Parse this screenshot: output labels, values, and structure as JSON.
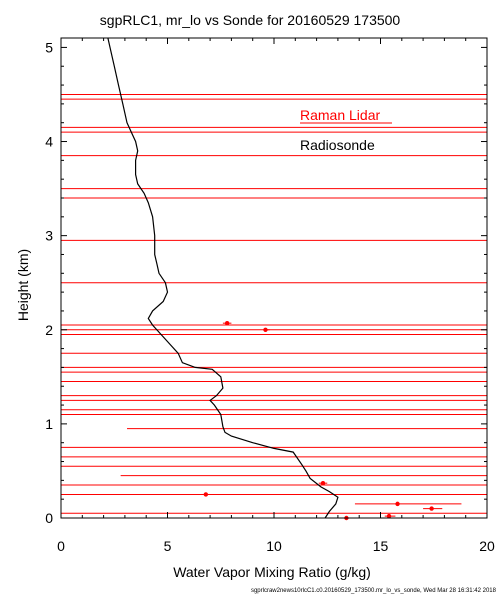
{
  "chart_data": {
    "type": "scatter",
    "title": "sgpRLC1, mr_lo vs Sonde for 20160529 173500",
    "xlabel": "Water Vapor Mixing Ratio (g/kg)",
    "ylabel": "Height (km)",
    "xlim": [
      0,
      20
    ],
    "ylim": [
      0,
      5.1
    ],
    "xticks": [
      "0",
      "5",
      "10",
      "15",
      "20"
    ],
    "yticks": [
      "0",
      "1",
      "2",
      "3",
      "4",
      "5"
    ],
    "grid": false,
    "legend": [
      {
        "name": "Raman Lidar",
        "color": "#ff0000"
      },
      {
        "name": "Radiosonde",
        "color": "#000000"
      }
    ],
    "footer": "sgprlcraw2news10rlcC1.c0.20160529_173500.mr_lo_vs_sonde, Wed Mar 28 16:31:42 2018",
    "series": [
      {
        "name": "Radiosonde",
        "kind": "line",
        "color": "#000000",
        "points": [
          [
            12.4,
            0.0
          ],
          [
            12.6,
            0.07
          ],
          [
            12.9,
            0.15
          ],
          [
            13.0,
            0.22
          ],
          [
            12.6,
            0.28
          ],
          [
            12.2,
            0.33
          ],
          [
            11.7,
            0.42
          ],
          [
            11.5,
            0.5
          ],
          [
            11.3,
            0.57
          ],
          [
            10.9,
            0.7
          ],
          [
            10.0,
            0.74
          ],
          [
            9.0,
            0.8
          ],
          [
            8.0,
            0.87
          ],
          [
            7.7,
            0.91
          ],
          [
            7.6,
            0.97
          ],
          [
            7.5,
            1.1
          ],
          [
            7.2,
            1.2
          ],
          [
            7.0,
            1.25
          ],
          [
            7.3,
            1.3
          ],
          [
            7.6,
            1.38
          ],
          [
            7.5,
            1.5
          ],
          [
            7.1,
            1.58
          ],
          [
            6.3,
            1.6
          ],
          [
            5.7,
            1.65
          ],
          [
            5.5,
            1.75
          ],
          [
            5.1,
            1.85
          ],
          [
            4.7,
            1.95
          ],
          [
            4.3,
            2.05
          ],
          [
            4.1,
            2.12
          ],
          [
            4.3,
            2.2
          ],
          [
            4.8,
            2.3
          ],
          [
            5.0,
            2.4
          ],
          [
            4.9,
            2.5
          ],
          [
            4.6,
            2.6
          ],
          [
            4.5,
            2.7
          ],
          [
            4.4,
            2.8
          ],
          [
            4.4,
            3.0
          ],
          [
            4.3,
            3.2
          ],
          [
            4.1,
            3.35
          ],
          [
            3.9,
            3.45
          ],
          [
            3.6,
            3.55
          ],
          [
            3.5,
            3.65
          ],
          [
            3.5,
            3.8
          ],
          [
            3.6,
            3.9
          ],
          [
            3.5,
            4.0
          ],
          [
            3.3,
            4.1
          ],
          [
            3.1,
            4.2
          ],
          [
            2.9,
            4.4
          ],
          [
            2.7,
            4.6
          ],
          [
            2.5,
            4.8
          ],
          [
            2.3,
            5.0
          ],
          [
            2.2,
            5.1
          ]
        ]
      },
      {
        "name": "Raman Lidar",
        "kind": "points-with-error",
        "color": "#ff0000",
        "points": [
          {
            "y": 0.0,
            "x": 13.4,
            "xlo": 12.2,
            "xhi": 14.7
          },
          {
            "y": 0.02,
            "x": 15.4,
            "xlo": 15.2,
            "xhi": 15.7
          },
          {
            "y": 0.1,
            "x": 17.4,
            "xlo": 17.0,
            "xhi": 17.9
          },
          {
            "y": 0.15,
            "x": 15.8,
            "xlo": 13.8,
            "xhi": 18.8
          },
          {
            "y": 0.25,
            "x": 6.8,
            "xlo": 6.6,
            "xhi": 7.0
          },
          {
            "y": 0.37,
            "x": 12.3,
            "xlo": 12.1,
            "xhi": 12.5
          },
          {
            "y": 2.0,
            "x": 9.6,
            "xlo": 9.5,
            "xhi": 9.8
          },
          {
            "y": 2.07,
            "x": 7.8,
            "xlo": 7.6,
            "xhi": 8.0
          }
        ],
        "horizontal_bars": [
          {
            "y": 0.05,
            "x1": 0,
            "x2": 20
          },
          {
            "y": 0.25,
            "x1": 0,
            "x2": 20
          },
          {
            "y": 0.35,
            "x1": 0,
            "x2": 20
          },
          {
            "y": 0.45,
            "x1": 2.8,
            "x2": 20
          },
          {
            "y": 0.55,
            "x1": 0,
            "x2": 20
          },
          {
            "y": 0.65,
            "x1": 0,
            "x2": 20
          },
          {
            "y": 0.75,
            "x1": 0,
            "x2": 20
          },
          {
            "y": 0.95,
            "x1": 3.1,
            "x2": 20
          },
          {
            "y": 1.1,
            "x1": 0,
            "x2": 20
          },
          {
            "y": 1.15,
            "x1": 0,
            "x2": 20
          },
          {
            "y": 1.25,
            "x1": 0,
            "x2": 20
          },
          {
            "y": 1.3,
            "x1": 0,
            "x2": 20
          },
          {
            "y": 1.45,
            "x1": 0,
            "x2": 20
          },
          {
            "y": 1.55,
            "x1": 0,
            "x2": 20
          },
          {
            "y": 1.6,
            "x1": 0,
            "x2": 20
          },
          {
            "y": 1.75,
            "x1": 0,
            "x2": 20
          },
          {
            "y": 1.95,
            "x1": 0,
            "x2": 20
          },
          {
            "y": 2.0,
            "x1": 0,
            "x2": 20
          },
          {
            "y": 2.05,
            "x1": 0,
            "x2": 20
          },
          {
            "y": 2.5,
            "x1": 0,
            "x2": 20
          },
          {
            "y": 2.95,
            "x1": 0,
            "x2": 20
          },
          {
            "y": 3.4,
            "x1": 0,
            "x2": 20
          },
          {
            "y": 3.5,
            "x1": 0,
            "x2": 20
          },
          {
            "y": 3.85,
            "x1": 0,
            "x2": 20
          },
          {
            "y": 4.1,
            "x1": 0,
            "x2": 20
          },
          {
            "y": 4.15,
            "x1": 0,
            "x2": 20
          },
          {
            "y": 4.45,
            "x1": 0,
            "x2": 20
          },
          {
            "y": 4.5,
            "x1": 0,
            "x2": 20
          }
        ]
      }
    ]
  }
}
